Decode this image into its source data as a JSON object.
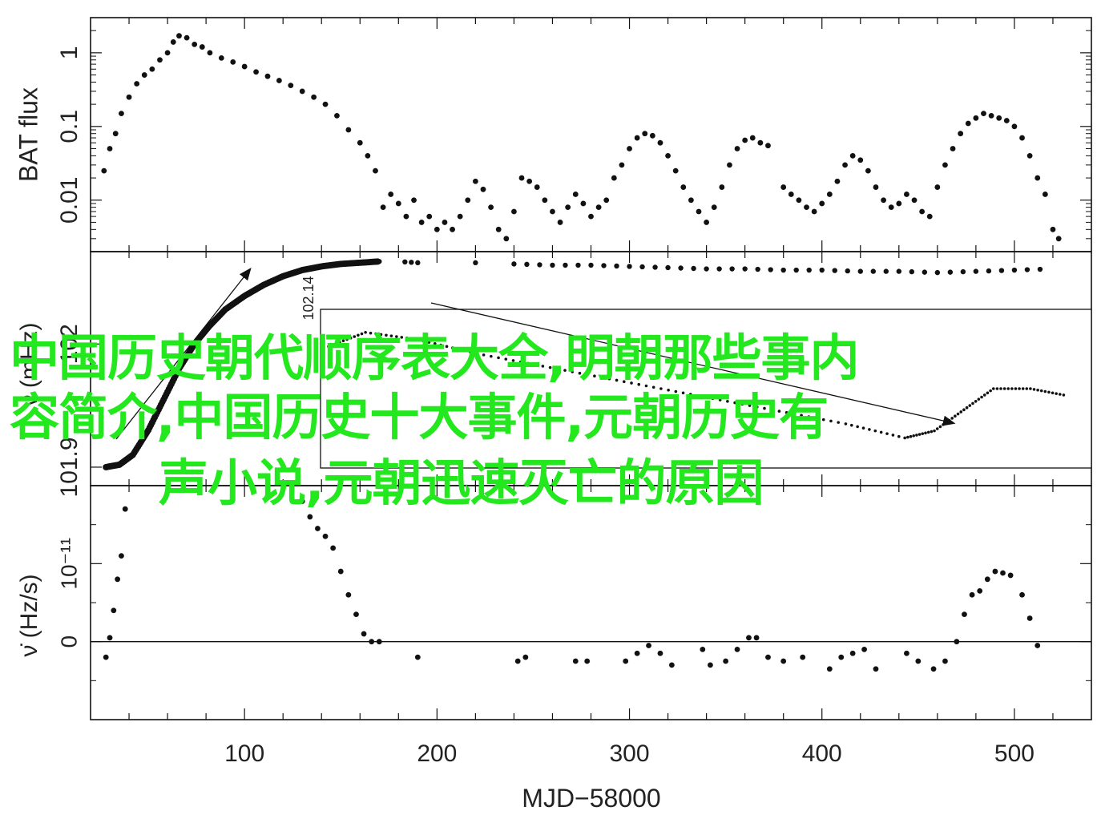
{
  "chart_data": [
    {
      "type": "scatter",
      "panel": "top",
      "ylabel": "BAT flux",
      "yscale": "log",
      "ylim": [
        0.002,
        3
      ],
      "yticks": [
        "0.01",
        "0.1",
        "1"
      ],
      "xlim": [
        20,
        540
      ],
      "points": [
        [
          27,
          0.025
        ],
        [
          30,
          0.05
        ],
        [
          33,
          0.08
        ],
        [
          36,
          0.15
        ],
        [
          40,
          0.25
        ],
        [
          44,
          0.38
        ],
        [
          48,
          0.5
        ],
        [
          52,
          0.6
        ],
        [
          56,
          0.8
        ],
        [
          60,
          1.0
        ],
        [
          63,
          1.4
        ],
        [
          66,
          1.7
        ],
        [
          70,
          1.6
        ],
        [
          74,
          1.3
        ],
        [
          78,
          1.2
        ],
        [
          82,
          1.0
        ],
        [
          88,
          0.85
        ],
        [
          94,
          0.75
        ],
        [
          100,
          0.65
        ],
        [
          106,
          0.55
        ],
        [
          112,
          0.48
        ],
        [
          118,
          0.42
        ],
        [
          124,
          0.36
        ],
        [
          130,
          0.3
        ],
        [
          136,
          0.25
        ],
        [
          142,
          0.2
        ],
        [
          148,
          0.14
        ],
        [
          154,
          0.09
        ],
        [
          160,
          0.06
        ],
        [
          164,
          0.04
        ],
        [
          168,
          0.025
        ],
        [
          172,
          0.008
        ],
        [
          176,
          0.012
        ],
        [
          180,
          0.009
        ],
        [
          184,
          0.006
        ],
        [
          188,
          0.01
        ],
        [
          192,
          0.005
        ],
        [
          196,
          0.006
        ],
        [
          200,
          0.004
        ],
        [
          204,
          0.005
        ],
        [
          208,
          0.004
        ],
        [
          212,
          0.006
        ],
        [
          216,
          0.01
        ],
        [
          220,
          0.018
        ],
        [
          224,
          0.014
        ],
        [
          228,
          0.008
        ],
        [
          232,
          0.004
        ],
        [
          236,
          0.003
        ],
        [
          240,
          0.007
        ],
        [
          244,
          0.02
        ],
        [
          248,
          0.018
        ],
        [
          252,
          0.015
        ],
        [
          256,
          0.01
        ],
        [
          260,
          0.007
        ],
        [
          264,
          0.005
        ],
        [
          268,
          0.008
        ],
        [
          272,
          0.012
        ],
        [
          276,
          0.009
        ],
        [
          280,
          0.006
        ],
        [
          284,
          0.008
        ],
        [
          288,
          0.01
        ],
        [
          292,
          0.02
        ],
        [
          296,
          0.03
        ],
        [
          300,
          0.05
        ],
        [
          304,
          0.07
        ],
        [
          308,
          0.08
        ],
        [
          312,
          0.075
        ],
        [
          316,
          0.06
        ],
        [
          320,
          0.04
        ],
        [
          324,
          0.025
        ],
        [
          328,
          0.015
        ],
        [
          332,
          0.01
        ],
        [
          336,
          0.007
        ],
        [
          340,
          0.005
        ],
        [
          344,
          0.008
        ],
        [
          348,
          0.015
        ],
        [
          352,
          0.03
        ],
        [
          356,
          0.05
        ],
        [
          360,
          0.065
        ],
        [
          364,
          0.07
        ],
        [
          368,
          0.06
        ],
        [
          372,
          0.055
        ],
        [
          380,
          0.015
        ],
        [
          384,
          0.012
        ],
        [
          388,
          0.01
        ],
        [
          392,
          0.008
        ],
        [
          396,
          0.007
        ],
        [
          400,
          0.009
        ],
        [
          404,
          0.012
        ],
        [
          408,
          0.018
        ],
        [
          412,
          0.03
        ],
        [
          416,
          0.04
        ],
        [
          420,
          0.035
        ],
        [
          424,
          0.025
        ],
        [
          428,
          0.015
        ],
        [
          432,
          0.01
        ],
        [
          436,
          0.008
        ],
        [
          440,
          0.009
        ],
        [
          444,
          0.012
        ],
        [
          448,
          0.01
        ],
        [
          452,
          0.007
        ],
        [
          456,
          0.006
        ],
        [
          460,
          0.015
        ],
        [
          464,
          0.03
        ],
        [
          468,
          0.05
        ],
        [
          472,
          0.08
        ],
        [
          476,
          0.11
        ],
        [
          480,
          0.13
        ],
        [
          484,
          0.15
        ],
        [
          488,
          0.14
        ],
        [
          492,
          0.13
        ],
        [
          496,
          0.12
        ],
        [
          500,
          0.1
        ],
        [
          504,
          0.07
        ],
        [
          508,
          0.04
        ],
        [
          512,
          0.02
        ],
        [
          516,
          0.012
        ],
        [
          520,
          0.004
        ],
        [
          523,
          0.003
        ]
      ]
    },
    {
      "type": "scatter",
      "panel": "middle",
      "ylabel": "ν (mHz)",
      "ylim": [
        101.885,
        102.075
      ],
      "yticks": [
        "101.9",
        "102"
      ],
      "xlim": [
        20,
        540
      ],
      "points": [
        [
          28,
          101.9
        ],
        [
          35,
          101.902
        ],
        [
          42,
          101.91
        ],
        [
          50,
          101.93
        ],
        [
          58,
          101.955
        ],
        [
          66,
          101.98
        ],
        [
          74,
          102.0
        ],
        [
          82,
          102.015
        ],
        [
          90,
          102.028
        ],
        [
          100,
          102.039
        ],
        [
          110,
          102.048
        ],
        [
          120,
          102.055
        ],
        [
          130,
          102.06
        ],
        [
          140,
          102.063
        ],
        [
          150,
          102.065
        ],
        [
          160,
          102.066
        ],
        [
          170,
          102.067
        ],
        [
          180,
          102.067
        ],
        [
          190,
          102.066
        ],
        [
          200,
          102.066
        ],
        [
          220,
          102.066
        ],
        [
          240,
          102.065
        ],
        [
          260,
          102.064
        ],
        [
          280,
          102.064
        ],
        [
          300,
          102.063
        ],
        [
          320,
          102.062
        ],
        [
          340,
          102.061
        ],
        [
          360,
          102.061
        ],
        [
          380,
          102.06
        ],
        [
          400,
          102.06
        ],
        [
          420,
          102.059
        ],
        [
          440,
          102.059
        ],
        [
          460,
          102.058
        ],
        [
          480,
          102.059
        ],
        [
          500,
          102.06
        ],
        [
          520,
          102.061
        ]
      ]
    },
    {
      "type": "line",
      "panel": "inset",
      "yticks": [
        "102.14"
      ],
      "points": [
        [
          0.0,
          102.14
        ],
        [
          0.05,
          102.142
        ],
        [
          0.12,
          102.141
        ],
        [
          0.2,
          102.139
        ],
        [
          0.3,
          102.137
        ],
        [
          0.4,
          102.135
        ],
        [
          0.5,
          102.133
        ],
        [
          0.6,
          102.131
        ],
        [
          0.7,
          102.129
        ],
        [
          0.78,
          102.127
        ],
        [
          0.82,
          102.128
        ],
        [
          0.86,
          102.131
        ],
        [
          0.9,
          102.134
        ],
        [
          0.95,
          102.134
        ],
        [
          1.0,
          102.133
        ]
      ]
    },
    {
      "type": "scatter",
      "panel": "bottom",
      "ylabel": "ν̇ (Hz/s)",
      "ylim": [
        -1.0,
        2.0
      ],
      "yticks": [
        "0",
        "10⁻¹¹"
      ],
      "xlabel": "MJD−58000",
      "xlim": [
        20,
        540
      ],
      "xticks": [
        "100",
        "200",
        "300",
        "400",
        "500"
      ],
      "points": [
        [
          28,
          -0.2
        ],
        [
          30,
          0.05
        ],
        [
          32,
          0.4
        ],
        [
          34,
          0.8
        ],
        [
          36,
          1.1
        ],
        [
          38,
          1.7
        ],
        [
          130,
          1.8
        ],
        [
          134,
          1.6
        ],
        [
          138,
          1.45
        ],
        [
          142,
          1.35
        ],
        [
          146,
          1.2
        ],
        [
          150,
          0.9
        ],
        [
          154,
          0.6
        ],
        [
          158,
          0.35
        ],
        [
          162,
          0.1
        ],
        [
          166,
          0.0
        ],
        [
          170,
          0.0
        ],
        [
          190,
          -0.2
        ],
        [
          242,
          -0.25
        ],
        [
          246,
          -0.2
        ],
        [
          272,
          -0.25
        ],
        [
          278,
          -0.25
        ],
        [
          298,
          -0.25
        ],
        [
          304,
          -0.15
        ],
        [
          310,
          -0.05
        ],
        [
          316,
          -0.15
        ],
        [
          322,
          -0.3
        ],
        [
          338,
          -0.1
        ],
        [
          342,
          -0.3
        ],
        [
          350,
          -0.25
        ],
        [
          356,
          -0.1
        ],
        [
          362,
          0.05
        ],
        [
          366,
          0.05
        ],
        [
          372,
          -0.2
        ],
        [
          380,
          -0.25
        ],
        [
          390,
          -0.2
        ],
        [
          404,
          -0.35
        ],
        [
          410,
          -0.2
        ],
        [
          416,
          -0.15
        ],
        [
          422,
          -0.1
        ],
        [
          428,
          -0.35
        ],
        [
          444,
          -0.15
        ],
        [
          450,
          -0.25
        ],
        [
          458,
          -0.35
        ],
        [
          464,
          -0.25
        ],
        [
          470,
          0.0
        ],
        [
          474,
          0.35
        ],
        [
          478,
          0.6
        ],
        [
          482,
          0.65
        ],
        [
          486,
          0.8
        ],
        [
          490,
          0.9
        ],
        [
          494,
          0.88
        ],
        [
          498,
          0.85
        ],
        [
          504,
          0.6
        ],
        [
          508,
          0.3
        ],
        [
          512,
          -0.05
        ]
      ]
    }
  ],
  "overlay": {
    "line1": "中国历史朝代顺序表大全,明朝那些事内",
    "line2": "容简介,中国历史十大事件,元朝历史有",
    "line3": "声小说,元朝迅速灭亡的原因"
  }
}
